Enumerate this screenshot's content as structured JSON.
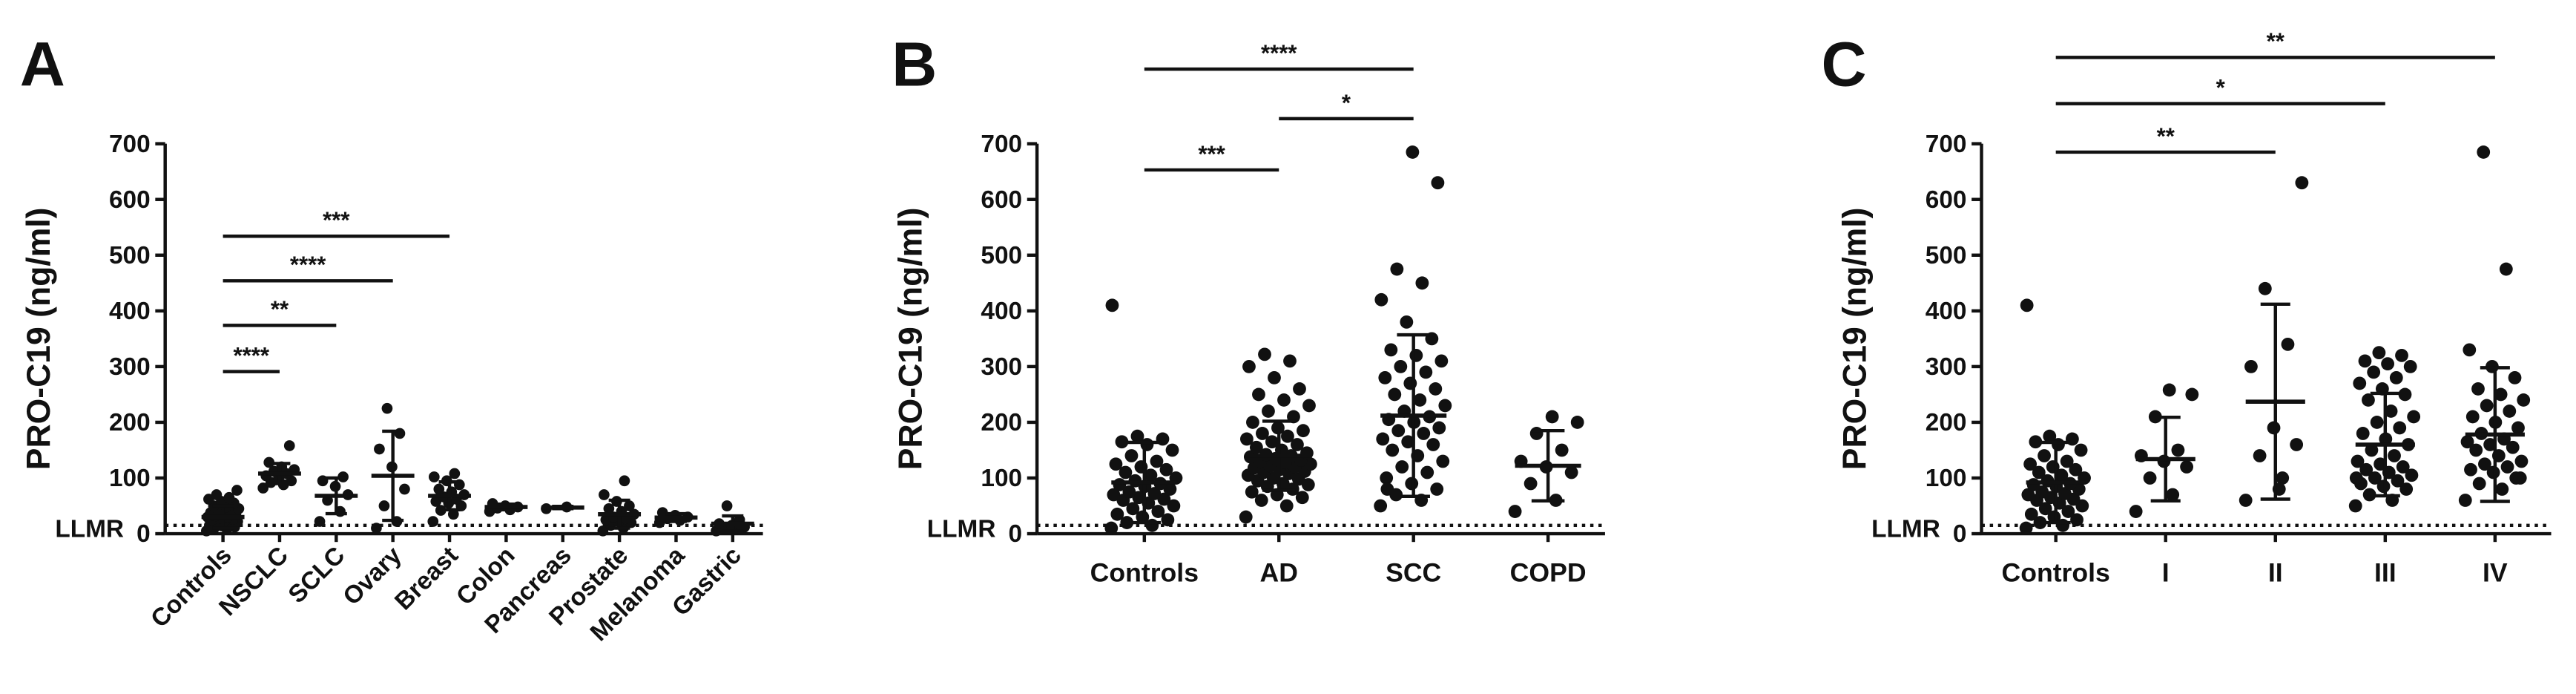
{
  "chart_data": [
    {
      "type": "dot",
      "panel": "A",
      "ylabel": "PRO-C19 (ng/ml)",
      "ylim": [
        0,
        700
      ],
      "yticks": [
        0,
        100,
        200,
        300,
        400,
        500,
        600,
        700
      ],
      "lod": 15,
      "lod_label": "LLMR",
      "categories": [
        "Controls",
        "NSCLC",
        "SCLC",
        "Ovary",
        "Breast",
        "Colon",
        "Pancreas",
        "Prostate",
        "Melanoma",
        "Gastric"
      ],
      "points": [
        [
          5,
          8,
          10,
          12,
          14,
          15,
          18,
          20,
          22,
          24,
          25,
          26,
          28,
          30,
          30,
          32,
          34,
          35,
          38,
          40,
          42,
          45,
          48,
          50,
          55,
          58,
          62,
          65,
          70,
          78
        ],
        [
          82,
          88,
          92,
          95,
          100,
          104,
          108,
          112,
          115,
          120,
          128,
          158
        ],
        [
          22,
          40,
          60,
          70,
          85,
          95,
          102
        ],
        [
          10,
          22,
          50,
          80,
          120,
          152,
          180,
          225
        ],
        [
          22,
          35,
          42,
          50,
          55,
          58,
          62,
          66,
          70,
          75,
          80,
          88,
          95,
          102,
          108
        ],
        [
          40,
          43,
          46,
          48,
          50,
          54
        ],
        [
          45,
          48
        ],
        [
          5,
          10,
          15,
          20,
          22,
          25,
          28,
          30,
          35,
          40,
          45,
          50,
          58,
          70,
          95
        ],
        [
          20,
          24,
          27,
          30,
          33,
          38
        ],
        [
          5,
          8,
          10,
          12,
          15,
          18,
          25,
          50
        ]
      ],
      "mean": [
        30,
        108,
        68,
        104,
        68,
        48,
        47,
        35,
        29,
        18
      ],
      "sd": [
        20,
        18,
        32,
        80,
        25,
        5,
        2,
        25,
        7,
        14
      ],
      "comparisons": [
        {
          "between": [
            "Controls",
            "NSCLC"
          ],
          "y": 291,
          "label": "****"
        },
        {
          "between": [
            "Controls",
            "SCLC"
          ],
          "y": 374,
          "label": "**"
        },
        {
          "between": [
            "Controls",
            "Ovary"
          ],
          "y": 454,
          "label": "****"
        },
        {
          "between": [
            "Controls",
            "Breast"
          ],
          "y": 534,
          "label": "***"
        }
      ]
    },
    {
      "type": "dot",
      "panel": "B",
      "ylabel": "PRO-C19 (ng/ml)",
      "ylim": [
        0,
        700
      ],
      "yticks": [
        0,
        100,
        200,
        300,
        400,
        500,
        600,
        700
      ],
      "lod": 15,
      "lod_label": "LLMR",
      "categories": [
        "Controls",
        "AD",
        "SCC",
        "COPD"
      ],
      "points": [
        [
          10,
          15,
          20,
          25,
          30,
          35,
          40,
          45,
          50,
          55,
          60,
          62,
          65,
          70,
          72,
          75,
          80,
          85,
          88,
          90,
          95,
          100,
          105,
          110,
          115,
          120,
          125,
          130,
          140,
          150,
          160,
          165,
          170,
          175,
          410
        ],
        [
          30,
          50,
          60,
          65,
          70,
          75,
          80,
          85,
          88,
          90,
          95,
          98,
          100,
          105,
          108,
          110,
          112,
          115,
          118,
          120,
          122,
          125,
          128,
          130,
          132,
          135,
          138,
          140,
          142,
          145,
          150,
          155,
          160,
          165,
          170,
          175,
          180,
          185,
          190,
          200,
          210,
          220,
          230,
          240,
          250,
          260,
          280,
          300,
          310,
          322
        ],
        [
          50,
          60,
          70,
          80,
          90,
          100,
          110,
          120,
          130,
          140,
          150,
          160,
          165,
          170,
          180,
          185,
          190,
          200,
          205,
          210,
          220,
          230,
          240,
          250,
          260,
          270,
          280,
          290,
          300,
          310,
          320,
          330,
          350,
          380,
          420,
          450,
          475,
          630,
          685,
          80
        ],
        [
          40,
          60,
          90,
          110,
          120,
          130,
          150,
          180,
          200,
          210
        ]
      ],
      "mean": [
        92,
        140,
        212,
        122
      ],
      "sd": [
        72,
        62,
        145,
        63
      ],
      "comparisons": [
        {
          "between": [
            "Controls",
            "AD"
          ],
          "y": 653,
          "label": "***"
        },
        {
          "between": [
            "AD",
            "SCC"
          ],
          "y": 745,
          "label": "*"
        },
        {
          "between": [
            "Controls",
            "SCC"
          ],
          "y": 834,
          "label": "****"
        }
      ]
    },
    {
      "type": "dot",
      "panel": "C",
      "ylabel": "PRO-C19 (ng/ml)",
      "ylim": [
        0,
        700
      ],
      "yticks": [
        0,
        100,
        200,
        300,
        400,
        500,
        600,
        700
      ],
      "lod": 15,
      "lod_label": "LLMR",
      "categories": [
        "Controls",
        "I",
        "II",
        "III",
        "IV"
      ],
      "points": [
        [
          10,
          15,
          20,
          25,
          30,
          35,
          40,
          45,
          50,
          55,
          60,
          62,
          65,
          70,
          72,
          75,
          80,
          85,
          88,
          90,
          95,
          100,
          105,
          110,
          115,
          120,
          125,
          130,
          140,
          150,
          160,
          165,
          170,
          175,
          410
        ],
        [
          40,
          70,
          100,
          120,
          130,
          140,
          150,
          210,
          250,
          258
        ],
        [
          60,
          100,
          140,
          160,
          190,
          300,
          340,
          440,
          630,
          80
        ],
        [
          50,
          60,
          70,
          80,
          85,
          90,
          95,
          100,
          105,
          110,
          115,
          120,
          125,
          130,
          140,
          150,
          160,
          170,
          180,
          190,
          200,
          210,
          220,
          240,
          250,
          260,
          270,
          280,
          290,
          300,
          305,
          310,
          320,
          325,
          100
        ],
        [
          60,
          80,
          90,
          100,
          110,
          115,
          120,
          125,
          130,
          140,
          150,
          155,
          160,
          165,
          170,
          180,
          190,
          200,
          210,
          220,
          230,
          240,
          250,
          260,
          280,
          300,
          330,
          475,
          685,
          100
        ]
      ],
      "mean": [
        92,
        134,
        237,
        160,
        178
      ],
      "sd": [
        72,
        75,
        175,
        92,
        120
      ],
      "comparisons": [
        {
          "between": [
            "Controls",
            "II"
          ],
          "y": 685,
          "label": "**"
        },
        {
          "between": [
            "Controls",
            "III"
          ],
          "y": 772,
          "label": "*"
        },
        {
          "between": [
            "Controls",
            "IV"
          ],
          "y": 855,
          "label": "**"
        }
      ]
    }
  ]
}
